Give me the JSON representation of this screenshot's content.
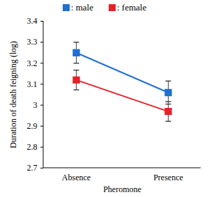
{
  "chart_data": {
    "type": "line",
    "x_label": "Pheromone",
    "y_label": "Duration of death feigning (log)",
    "categories": [
      "Absence",
      "Presence"
    ],
    "series": [
      {
        "name": ": male",
        "color": "#1f6fd1",
        "marker": "square",
        "values": [
          3.25,
          3.06
        ],
        "errors": [
          0.05,
          0.055
        ]
      },
      {
        "name": ": female",
        "color": "#e8202a",
        "marker": "square",
        "values": [
          3.12,
          2.97
        ],
        "errors": [
          0.047,
          0.047
        ]
      }
    ],
    "ylim": [
      2.7,
      3.4
    ],
    "yticks": [
      2.7,
      2.8,
      2.9,
      3,
      3.1,
      3.2,
      3.3,
      3.4
    ],
    "legend": "top"
  }
}
